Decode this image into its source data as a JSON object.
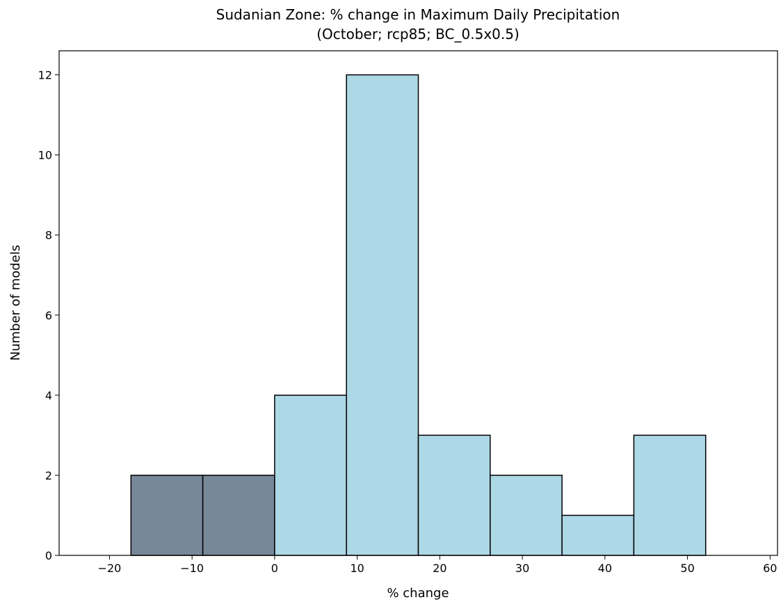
{
  "chart_data": {
    "type": "bar",
    "title": "Sudanian Zone: % change in Maximum Daily Precipitation",
    "subtitle": "(October; rcp85; BC_0.5x0.5)",
    "xlabel": "% change",
    "ylabel": "Number of models",
    "xlim": [
      -26.1,
      60.9
    ],
    "ylim": [
      0,
      12.6
    ],
    "xticks": [
      -20,
      -10,
      0,
      10,
      20,
      30,
      40,
      50,
      60
    ],
    "xtick_labels": [
      "−20",
      "−10",
      "0",
      "10",
      "20",
      "30",
      "40",
      "50",
      "60"
    ],
    "yticks": [
      0,
      2,
      4,
      6,
      8,
      10,
      12
    ],
    "ytick_labels": [
      "0",
      "2",
      "4",
      "6",
      "8",
      "10",
      "12"
    ],
    "grid": false,
    "colors": {
      "negative": "#778899",
      "positive": "#add8e6",
      "edge": "#000000"
    },
    "bins": [
      {
        "x0": -17.4,
        "x1": -8.7,
        "count": 2,
        "group": "negative"
      },
      {
        "x0": -8.7,
        "x1": 0.0,
        "count": 2,
        "group": "negative"
      },
      {
        "x0": 0.0,
        "x1": 8.7,
        "count": 4,
        "group": "positive"
      },
      {
        "x0": 8.7,
        "x1": 17.4,
        "count": 12,
        "group": "positive"
      },
      {
        "x0": 17.4,
        "x1": 26.1,
        "count": 3,
        "group": "positive"
      },
      {
        "x0": 26.1,
        "x1": 34.8,
        "count": 2,
        "group": "positive"
      },
      {
        "x0": 34.8,
        "x1": 43.5,
        "count": 1,
        "group": "positive"
      },
      {
        "x0": 43.5,
        "x1": 52.2,
        "count": 3,
        "group": "positive"
      }
    ]
  }
}
